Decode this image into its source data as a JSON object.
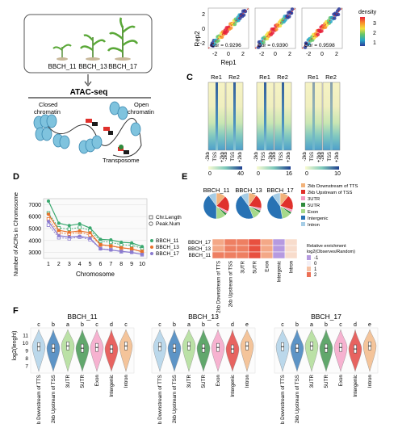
{
  "panel_letters": {
    "c": "C",
    "d": "D",
    "e": "E",
    "f": "F"
  },
  "panel_a": {
    "stages": [
      "BBCH_11",
      "BBCH_13",
      "BBCH_17"
    ],
    "method_title": "ATAC-seq",
    "closed_label_1": "Closed",
    "closed_label_2": "chromatin",
    "open_label_1": "Open",
    "open_label_2": "chromatin",
    "transposome_label": "Transposome"
  },
  "panel_b": {
    "ylabel": "Rep2",
    "xlabel": "Rep1",
    "ticks": [
      "2",
      "0",
      "-2"
    ],
    "xticks": [
      "-2",
      "0",
      "2"
    ],
    "cor_labels": [
      "Cor = 0.9296",
      "Cor = 0.9390",
      "Cor = 0.9598"
    ],
    "legend_title": "density",
    "legend_ticks": [
      "3",
      "2",
      "1"
    ],
    "colors": [
      "#e8203a",
      "#f98e2a",
      "#f4e03c",
      "#66c56a",
      "#27a7c6",
      "#2c3a9a"
    ]
  },
  "panel_c": {
    "col_labels": [
      "Re1",
      "Re2"
    ],
    "xticks": [
      "-2kb",
      "TSS",
      "+2kb"
    ],
    "colorbar_ticks": [
      [
        "0",
        "40"
      ],
      [
        "0",
        "16"
      ],
      [
        "0",
        "10"
      ]
    ]
  },
  "chart_data": {
    "type": "line",
    "xlabel": "Chromosome",
    "ylabel": "Number of ACRs in Chromosome",
    "categories": [
      1,
      2,
      3,
      4,
      5,
      6,
      7,
      8,
      9,
      10
    ],
    "ylim": [
      2500,
      7500
    ],
    "yticks": [
      3000,
      4000,
      5000,
      6000,
      7000
    ],
    "shape_legend": [
      "Chr.Length",
      "Peak.Num"
    ],
    "series": [
      {
        "name": "BBCH_11",
        "color": "#3aa86f",
        "values": [
          7300,
          5450,
          5250,
          5400,
          5050,
          4100,
          4050,
          3850,
          3800,
          3500
        ]
      },
      {
        "name": "BBCH_13",
        "color": "#e8702a",
        "values": [
          6200,
          4850,
          4700,
          4800,
          4650,
          3650,
          3550,
          3400,
          3300,
          3050
        ]
      },
      {
        "name": "BBCH_17",
        "color": "#8a7bd0",
        "values": [
          5600,
          4400,
          4300,
          4350,
          4200,
          3300,
          3200,
          3100,
          3000,
          2850
        ]
      }
    ],
    "chr_length_values": [
      6300,
      5050,
      4950,
      5100,
      4850,
      3950,
      3850,
      3650,
      3600,
      3350
    ]
  },
  "panel_e": {
    "pie_titles": [
      "BBCH_11",
      "BBCH_13",
      "BBCH_17"
    ],
    "categories": [
      "2kb Downstream of TTS",
      "2kb Upstream of TSS",
      "3UTR",
      "5UTR",
      "Exon",
      "Intergenic",
      "Intron"
    ],
    "colors": [
      "#f2b27a",
      "#e0312c",
      "#f49ac2",
      "#2e8b3c",
      "#a6d98a",
      "#2872b4",
      "#a6cde6"
    ],
    "pies": [
      [
        12,
        20,
        3,
        3,
        12,
        40,
        10
      ],
      [
        10,
        18,
        3,
        3,
        10,
        46,
        10
      ],
      [
        11,
        19,
        3,
        3,
        11,
        43,
        10
      ]
    ],
    "heatmap_rows": [
      "BBCH_17",
      "BBCH_13",
      "BBCH_11"
    ],
    "heatmap_cols": [
      "2kb Downstream of TTS",
      "2kb Upstream of TSS",
      "3UTR",
      "5UTR",
      "Exon",
      "Intergenic",
      "Intron"
    ],
    "heatmap_values": [
      [
        1.3,
        1.6,
        1.5,
        2.0,
        1.0,
        -0.8,
        0.6
      ],
      [
        1.3,
        1.7,
        1.5,
        2.0,
        1.0,
        -0.9,
        0.5
      ],
      [
        1.4,
        1.6,
        1.6,
        2.1,
        1.1,
        -0.8,
        0.6
      ]
    ],
    "heat_legend_title_1": "Relative enrichment",
    "heat_legend_title_2": "log2(Observes/Random)",
    "heat_legend_ticks": [
      "-1",
      "0",
      "1",
      "2"
    ]
  },
  "panel_f": {
    "titles": [
      "BBCH_11",
      "BBCH_13",
      "BBCH_17"
    ],
    "ylabel": "log2(lenght)",
    "yticks": [
      "11",
      "10",
      "9",
      "8",
      "7"
    ],
    "categories": [
      "2kb Downstream of TTS",
      "2kb Upstream of TSS",
      "3UTR",
      "5UTR",
      "Exon",
      "Intergenic",
      "Intron"
    ],
    "colors": [
      "#a6cde6",
      "#2872b4",
      "#a6d98a",
      "#2e8b3c",
      "#f49ac2",
      "#e0312c",
      "#f2b27a"
    ],
    "medians": [
      9.5,
      9.3,
      9.6,
      9.3,
      9.4,
      9.2,
      9.6
    ],
    "letters": [
      [
        "c",
        "b",
        "a",
        "b",
        "c",
        "d",
        "c"
      ],
      [
        "c",
        "b",
        "a",
        "b",
        "c",
        "d",
        "e"
      ],
      [
        "c",
        "b",
        "a",
        "b",
        "c",
        "d",
        "e"
      ]
    ]
  }
}
